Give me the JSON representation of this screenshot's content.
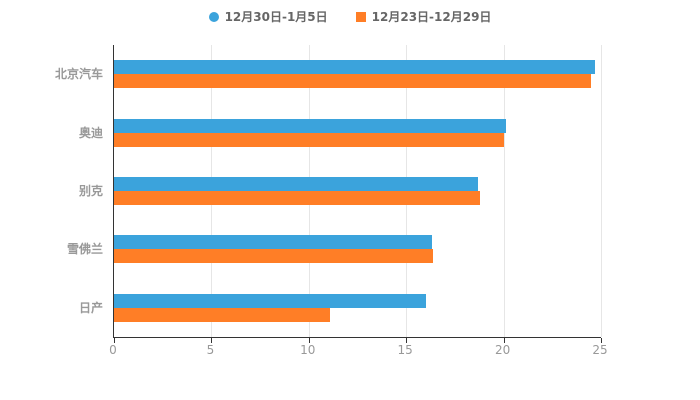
{
  "chart_data": {
    "type": "bar",
    "orientation": "horizontal",
    "title": "",
    "xlabel": "",
    "ylabel": "",
    "xlim": [
      0,
      25
    ],
    "xticks": [
      0,
      5,
      10,
      15,
      20,
      25
    ],
    "grid": true,
    "legend_position": "top",
    "categories": [
      "北京汽车",
      "奥迪",
      "别克",
      "雪佛兰",
      "日产"
    ],
    "series": [
      {
        "name": "12月30日-1月5日",
        "color": "#3BA3DC",
        "marker": "circle",
        "values": [
          24.7,
          20.1,
          18.7,
          16.3,
          16.0
        ]
      },
      {
        "name": "12月23日-12月29日",
        "color": "#FF7E26",
        "marker": "square",
        "values": [
          24.5,
          20.0,
          18.8,
          16.4,
          11.1
        ]
      }
    ]
  }
}
